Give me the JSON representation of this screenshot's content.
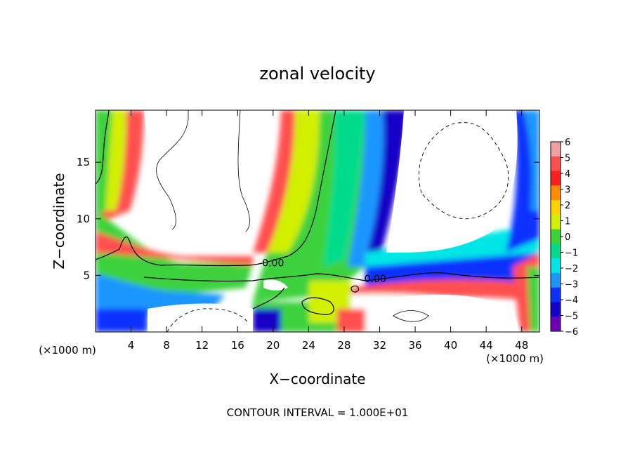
{
  "chart_data": {
    "type": "heatmap",
    "title": "zonal velocity",
    "xlabel": "X−coordinate",
    "ylabel": "Z−coordinate",
    "x_unit_left": "(×1000 m)",
    "x_unit_right": "(×1000 m)",
    "footer": "CONTOUR INTERVAL = 1.000E+01",
    "xlim": [
      0,
      50
    ],
    "ylim": [
      0,
      19.6
    ],
    "x_ticks": [
      4,
      8,
      12,
      16,
      20,
      24,
      28,
      32,
      36,
      40,
      44,
      48
    ],
    "y_ticks": [
      5,
      10,
      15
    ],
    "colorbar": {
      "min": -6,
      "max": 6,
      "labels": [
        "6",
        "5",
        "4",
        "3",
        "2",
        "1",
        "0",
        "−1",
        "−2",
        "−3",
        "−4",
        "−5",
        "−6"
      ],
      "colors": [
        "#f0a0a0",
        "#ff5050",
        "#ff1e1e",
        "#ff8c00",
        "#ffd200",
        "#d2f000",
        "#3cd23c",
        "#00dc8c",
        "#00e6e6",
        "#1e96ff",
        "#0a32ff",
        "#1400c8",
        "#6e00b4"
      ]
    },
    "contour_labels": [
      {
        "text": "0.00",
        "x": 20.0,
        "y": 6.1
      },
      {
        "text": "0.00",
        "x": 31.5,
        "y": 4.7
      }
    ]
  }
}
